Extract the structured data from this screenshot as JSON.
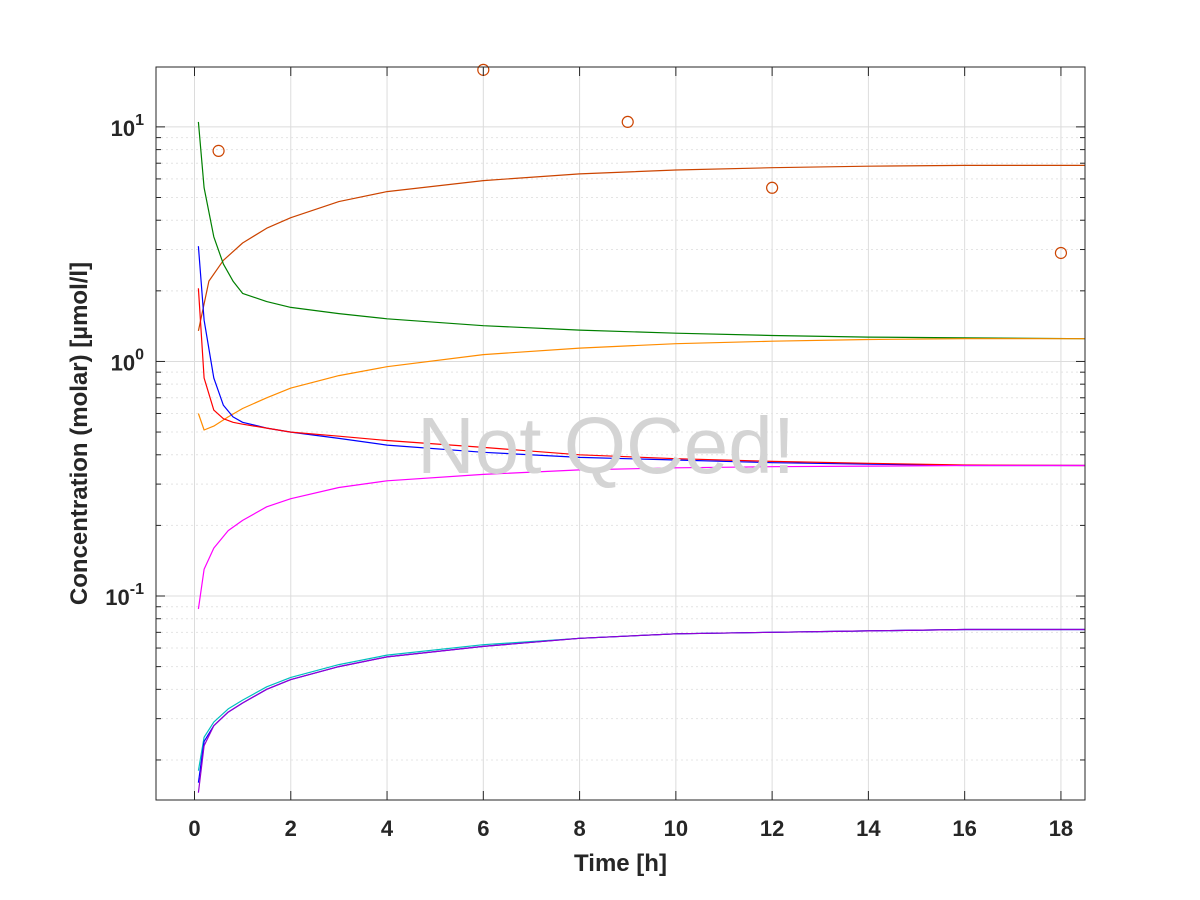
{
  "chart_data": {
    "type": "line",
    "xlabel": "Time [h]",
    "ylabel": "Concentration (molar) [µmol/l]",
    "watermark": "Not QCed!",
    "xlim": [
      -0.8,
      18.5
    ],
    "ylim": [
      0.0135,
      18
    ],
    "yscale": "log",
    "grid": true,
    "x_ticks": [
      "0",
      "2",
      "4",
      "6",
      "8",
      "10",
      "12",
      "14",
      "16",
      "18"
    ],
    "y_ticks": [
      {
        "base": "10",
        "exp": "-1"
      },
      {
        "base": "10",
        "exp": "0"
      },
      {
        "base": "10",
        "exp": "1"
      }
    ],
    "series": [
      {
        "color": "#CC4400",
        "x": [
          0.08,
          0.3,
          0.6,
          1,
          1.5,
          2,
          3,
          4,
          6,
          8,
          10,
          12,
          14,
          16,
          18.5
        ],
        "y": [
          1.35,
          2.2,
          2.7,
          3.2,
          3.7,
          4.1,
          4.8,
          5.3,
          5.9,
          6.3,
          6.55,
          6.7,
          6.8,
          6.85,
          6.85
        ]
      },
      {
        "color": "#008000",
        "x": [
          0.08,
          0.2,
          0.4,
          0.6,
          0.8,
          1,
          1.5,
          2,
          3,
          4,
          6,
          8,
          10,
          12,
          14,
          16,
          18.5
        ],
        "y": [
          10.5,
          5.5,
          3.4,
          2.6,
          2.2,
          1.95,
          1.8,
          1.7,
          1.6,
          1.52,
          1.42,
          1.36,
          1.32,
          1.29,
          1.27,
          1.26,
          1.25
        ]
      },
      {
        "color": "#FF8C00",
        "x": [
          0.08,
          0.2,
          0.4,
          0.7,
          1,
          1.5,
          2,
          3,
          4,
          6,
          8,
          10,
          12,
          14,
          16,
          18.5
        ],
        "y": [
          0.6,
          0.51,
          0.53,
          0.58,
          0.63,
          0.7,
          0.77,
          0.87,
          0.95,
          1.07,
          1.14,
          1.19,
          1.22,
          1.24,
          1.25,
          1.25
        ]
      },
      {
        "color": "#0000FF",
        "x": [
          0.08,
          0.2,
          0.4,
          0.6,
          0.8,
          1,
          1.5,
          2,
          3,
          4,
          6,
          8,
          10,
          12,
          14,
          16,
          18.5
        ],
        "y": [
          3.1,
          1.5,
          0.85,
          0.65,
          0.58,
          0.55,
          0.52,
          0.5,
          0.47,
          0.44,
          0.41,
          0.39,
          0.38,
          0.37,
          0.365,
          0.36,
          0.36
        ]
      },
      {
        "color": "#FF0000",
        "x": [
          0.08,
          0.2,
          0.4,
          0.6,
          0.8,
          1,
          1.5,
          2,
          3,
          4,
          6,
          8,
          10,
          12,
          14,
          16,
          18.5
        ],
        "y": [
          2.05,
          0.85,
          0.62,
          0.57,
          0.55,
          0.54,
          0.52,
          0.5,
          0.48,
          0.46,
          0.43,
          0.4,
          0.385,
          0.375,
          0.368,
          0.362,
          0.36
        ]
      },
      {
        "color": "#FF00FF",
        "x": [
          0.08,
          0.2,
          0.4,
          0.7,
          1,
          1.5,
          2,
          3,
          4,
          6,
          8,
          10,
          12,
          14,
          16,
          18.5
        ],
        "y": [
          0.088,
          0.13,
          0.16,
          0.19,
          0.21,
          0.24,
          0.26,
          0.29,
          0.31,
          0.33,
          0.345,
          0.352,
          0.356,
          0.358,
          0.36,
          0.36
        ]
      },
      {
        "color": "#00BFBF",
        "x": [
          0.08,
          0.2,
          0.4,
          0.7,
          1,
          1.5,
          2,
          3,
          4,
          6,
          8,
          10,
          12,
          14,
          16,
          18.5
        ],
        "y": [
          0.018,
          0.025,
          0.029,
          0.033,
          0.036,
          0.041,
          0.045,
          0.051,
          0.056,
          0.062,
          0.066,
          0.069,
          0.07,
          0.071,
          0.072,
          0.072
        ]
      },
      {
        "color": "#0000FF",
        "x": [
          0.08,
          0.2,
          0.4,
          0.7,
          1,
          1.5,
          2,
          3,
          4,
          6,
          8,
          10,
          12,
          14,
          16,
          18.5
        ],
        "y": [
          0.016,
          0.024,
          0.028,
          0.032,
          0.035,
          0.04,
          0.044,
          0.05,
          0.055,
          0.061,
          0.066,
          0.069,
          0.07,
          0.071,
          0.072,
          0.072
        ]
      },
      {
        "color": "#9400D3",
        "x": [
          0.08,
          0.2,
          0.4,
          0.7,
          1,
          1.5,
          2,
          3,
          4,
          6,
          8,
          10,
          12,
          14,
          16,
          18.5
        ],
        "y": [
          0.0145,
          0.023,
          0.028,
          0.032,
          0.035,
          0.04,
          0.044,
          0.05,
          0.055,
          0.061,
          0.066,
          0.069,
          0.07,
          0.071,
          0.072,
          0.072
        ]
      }
    ],
    "observations": {
      "color": "#CC4400",
      "marker": "circle",
      "x": [
        0.5,
        6,
        9,
        12,
        18
      ],
      "y": [
        7.9,
        17.5,
        10.5,
        5.5,
        2.9
      ]
    }
  }
}
